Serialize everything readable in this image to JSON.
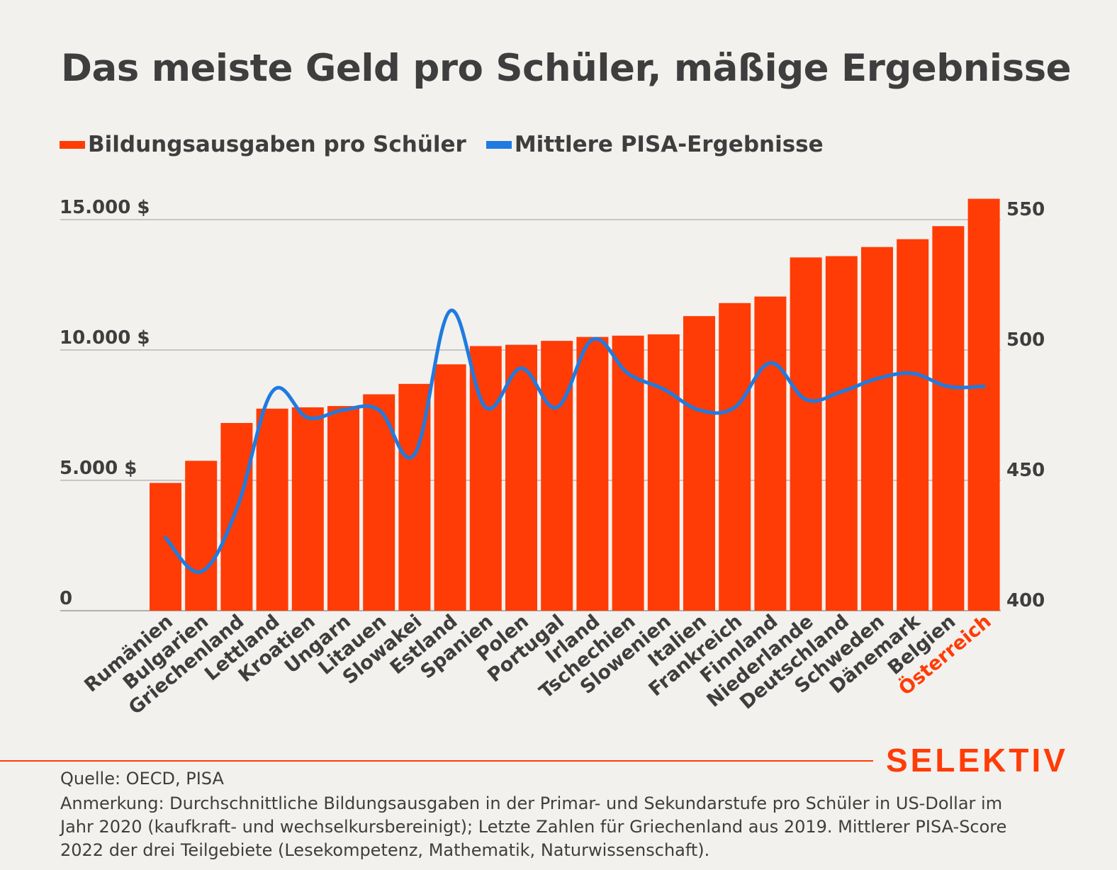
{
  "title": "Das meiste Geld pro Schüler, mäßige Ergebnisse",
  "legend": {
    "bars_label": "Bildungsausgaben pro Schüler",
    "line_label": "Mittlere PISA-Ergebnisse"
  },
  "colors": {
    "bar": "#ff3c06",
    "line": "#1f7be0",
    "highlight": "#ff3c06",
    "text": "#3e3e3e",
    "grid": "#b8b8b8",
    "background": "#f3f1ee"
  },
  "chart_data": {
    "type": "bar",
    "categories": [
      "Rumänien",
      "Bulgarien",
      "Griechenland",
      "Lettland",
      "Kroatien",
      "Ungarn",
      "Litauen",
      "Slowakei",
      "Estland",
      "Spanien",
      "Polen",
      "Portugal",
      "Irland",
      "Tschechien",
      "Slowenien",
      "Italien",
      "Frankreich",
      "Finnland",
      "Niederlande",
      "Deutschland",
      "Schweden",
      "Dänemark",
      "Belgien",
      "Österreich"
    ],
    "highlight_category": "Österreich",
    "series": [
      {
        "name": "Bildungsausgaben pro Schüler",
        "type": "bar",
        "axis": "left",
        "values": [
          4900,
          5750,
          7200,
          7750,
          7800,
          7850,
          8300,
          8700,
          9450,
          10150,
          10200,
          10350,
          10500,
          10550,
          10600,
          11300,
          11800,
          12050,
          13550,
          13600,
          13950,
          14250,
          14750,
          15800
        ]
      },
      {
        "name": "Mittlere PISA-Ergebnisse",
        "type": "line",
        "axis": "right",
        "values": [
          428,
          415,
          439,
          484,
          474,
          477,
          477,
          460,
          515,
          478,
          493,
          478,
          504,
          491,
          485,
          477,
          478,
          495,
          481,
          484,
          489,
          491,
          486,
          486
        ]
      }
    ],
    "y_left": {
      "min": 0,
      "max": 15000,
      "ticks": [
        0,
        5000,
        10000,
        15000
      ],
      "tick_labels": [
        "0",
        "5.000 $",
        "10.000 $",
        "15.000 $"
      ]
    },
    "y_right": {
      "min": 400,
      "max": 550,
      "ticks": [
        400,
        450,
        500,
        550
      ],
      "tick_labels": [
        "400",
        "450",
        "500",
        "550"
      ]
    },
    "grid": true,
    "legend_position": "top-left"
  },
  "brand": "SELEKTIV",
  "source": "Quelle: OECD, PISA",
  "note": "Anmerkung: Durchschnittliche Bildungsausgaben in der Primar- und Sekundarstufe pro Schüler in US-Dollar im Jahr 2020 (kaufkraft- und wechselkursbereinigt); Letzte Zahlen für Griechenland aus 2019. Mittlerer PISA-Score 2022 der drei Teilgebiete (Lesekompetenz, Mathematik, Naturwissenschaft)."
}
